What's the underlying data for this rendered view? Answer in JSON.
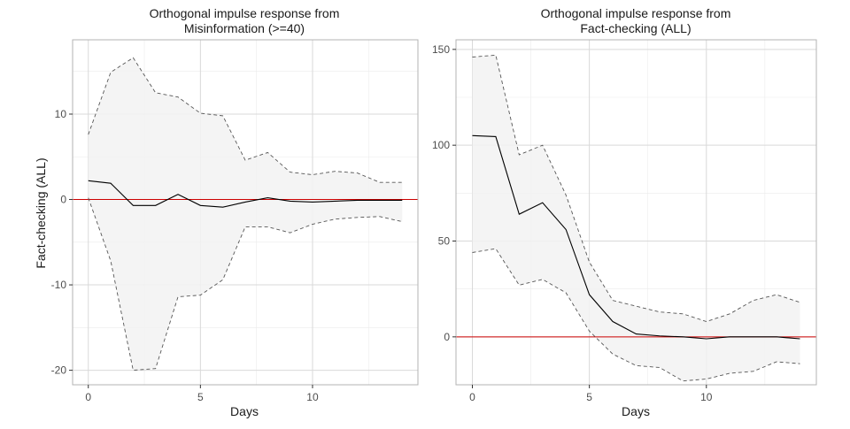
{
  "chart_data": [
    {
      "type": "line",
      "title_line1": "Orthogonal impulse response from",
      "title_line2": "Misinformation (>=40)",
      "xlabel": "Days",
      "ylabel": "Fact-checking (ALL)",
      "xlim": [
        -0.7,
        14.7
      ],
      "ylim": [
        -21.7,
        18.7
      ],
      "xticks": [
        0,
        5,
        10
      ],
      "yticks": [
        -20,
        -10,
        0,
        10
      ],
      "ytick_labels": [
        "-20",
        "-10",
        "0",
        "10"
      ],
      "grid": true,
      "x": [
        0,
        1,
        2,
        3,
        4,
        5,
        6,
        7,
        8,
        9,
        10,
        11,
        12,
        13,
        14
      ],
      "series": [
        {
          "role": "estimate",
          "values": [
            2.2,
            1.9,
            -0.7,
            -0.7,
            0.6,
            -0.7,
            -0.9,
            -0.3,
            0.2,
            -0.2,
            -0.3,
            -0.2,
            -0.1,
            -0.1,
            -0.1
          ]
        },
        {
          "role": "upper",
          "values": [
            7.6,
            14.9,
            16.6,
            12.5,
            12.0,
            10.1,
            9.8,
            4.6,
            5.5,
            3.2,
            2.9,
            3.3,
            3.1,
            2.0,
            2.0
          ]
        },
        {
          "role": "lower",
          "values": [
            0.2,
            -7.2,
            -20.0,
            -19.8,
            -11.4,
            -11.2,
            -9.4,
            -3.2,
            -3.2,
            -3.9,
            -2.9,
            -2.3,
            -2.1,
            -2.0,
            -2.6
          ]
        }
      ],
      "reference_line": 0,
      "colors": {
        "estimate": "#000000",
        "band_line": "#555555",
        "band_fill": "#f2f2f2",
        "zero_line": "#cc0000",
        "grid": "#d9d9d9",
        "border": "#b3b3b3"
      }
    },
    {
      "type": "line",
      "title_line1": "Orthogonal impulse response from",
      "title_line2": "Fact-checking (ALL)",
      "xlabel": "Days",
      "ylabel": "",
      "xlim": [
        -0.7,
        14.7
      ],
      "ylim": [
        -25,
        155
      ],
      "xticks": [
        0,
        5,
        10
      ],
      "yticks": [
        0,
        50,
        100,
        150
      ],
      "ytick_labels": [
        "0",
        "50",
        "100",
        "150"
      ],
      "grid": true,
      "x": [
        0,
        1,
        2,
        3,
        4,
        5,
        6,
        7,
        8,
        9,
        10,
        11,
        12,
        13,
        14
      ],
      "series": [
        {
          "role": "estimate",
          "values": [
            105,
            104.5,
            64,
            70,
            56,
            22,
            8,
            1.5,
            0.5,
            0,
            -1,
            0,
            0,
            0,
            -1
          ]
        },
        {
          "role": "upper",
          "values": [
            146,
            147,
            95,
            100,
            74,
            39,
            19,
            16,
            13,
            12,
            8,
            12,
            19,
            22,
            18
          ]
        },
        {
          "role": "lower",
          "values": [
            44,
            46,
            27,
            30,
            23,
            3,
            -9,
            -15,
            -16,
            -23,
            -22,
            -19,
            -18,
            -13,
            -14
          ]
        }
      ],
      "reference_line": 0,
      "colors": {
        "estimate": "#000000",
        "band_line": "#555555",
        "band_fill": "#f2f2f2",
        "zero_line": "#cc0000",
        "grid": "#d9d9d9",
        "border": "#b3b3b3"
      }
    }
  ]
}
